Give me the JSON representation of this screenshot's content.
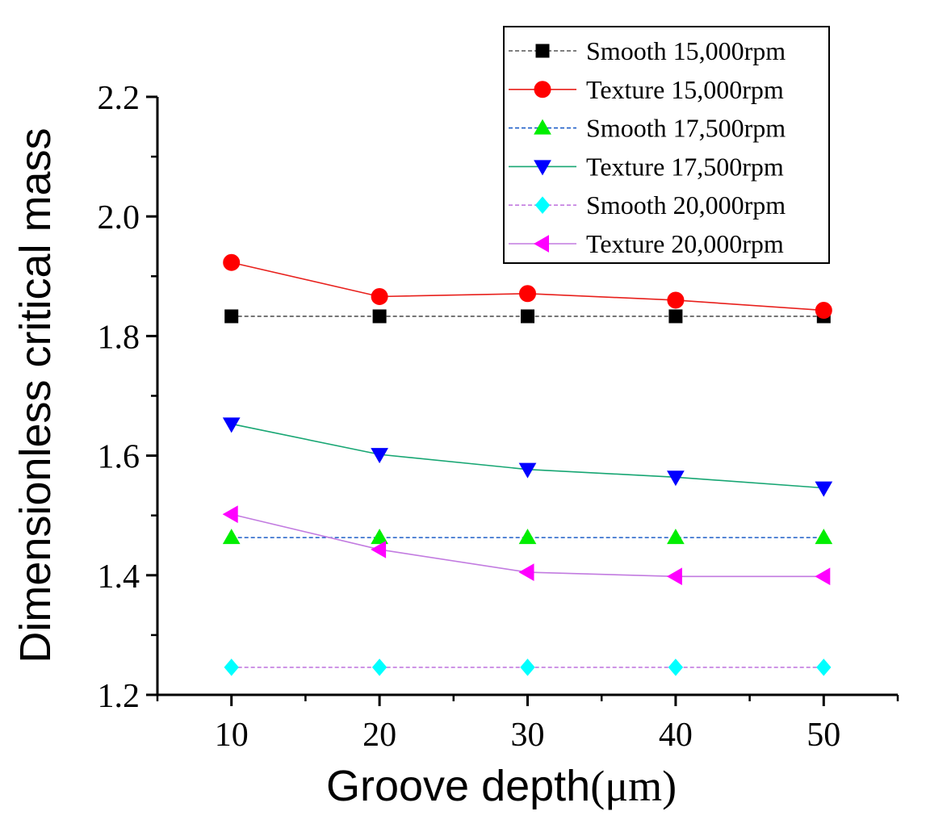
{
  "chart_data": {
    "type": "line",
    "title": "",
    "xlabel": "Groove depth",
    "xlabel_unit": "(μm)",
    "ylabel": "Dimensionless critical mass",
    "x": [
      10,
      20,
      30,
      40,
      50
    ],
    "xlim": [
      5,
      55
    ],
    "ylim": [
      1.2,
      2.2
    ],
    "xticks": [
      10,
      20,
      30,
      40,
      50
    ],
    "xtick_labels": [
      "10",
      "20",
      "30",
      "40",
      "50"
    ],
    "yticks": [
      1.2,
      1.4,
      1.6,
      1.8,
      2.0,
      2.2
    ],
    "ytick_labels": [
      "1.2",
      "1.4",
      "1.6",
      "1.8",
      "2.0",
      "2.2"
    ],
    "grid": false,
    "legend_position": "top-right",
    "series": [
      {
        "name": "Smooth 15,000rpm",
        "values": [
          1.833,
          1.833,
          1.833,
          1.833,
          1.833
        ],
        "line_color": "#555555",
        "marker_color": "#000000",
        "marker": "square",
        "dash": true
      },
      {
        "name": "Texture 15,000rpm",
        "values": [
          1.923,
          1.866,
          1.871,
          1.86,
          1.843
        ],
        "line_color": "#e8201c",
        "marker_color": "#ff0000",
        "marker": "circle",
        "dash": false
      },
      {
        "name": "Smooth 17,500rpm",
        "values": [
          1.463,
          1.463,
          1.463,
          1.463,
          1.463
        ],
        "line_color": "#1f5fc8",
        "marker_color": "#00ee00",
        "marker": "triangle-up",
        "dash": true
      },
      {
        "name": "Texture 17,500rpm",
        "values": [
          1.653,
          1.602,
          1.577,
          1.564,
          1.546
        ],
        "line_color": "#17a673",
        "marker_color": "#0000ff",
        "marker": "triangle-down",
        "dash": false
      },
      {
        "name": "Smooth 20,000rpm",
        "values": [
          1.246,
          1.246,
          1.246,
          1.246,
          1.246
        ],
        "line_color": "#c27be0",
        "marker_color": "#00ffff",
        "marker": "diamond",
        "dash": true
      },
      {
        "name": "Texture 20,000rpm",
        "values": [
          1.502,
          1.443,
          1.405,
          1.398,
          1.398
        ],
        "line_color": "#c27be0",
        "marker_color": "#ff00ff",
        "marker": "triangle-left",
        "dash": false
      }
    ]
  }
}
